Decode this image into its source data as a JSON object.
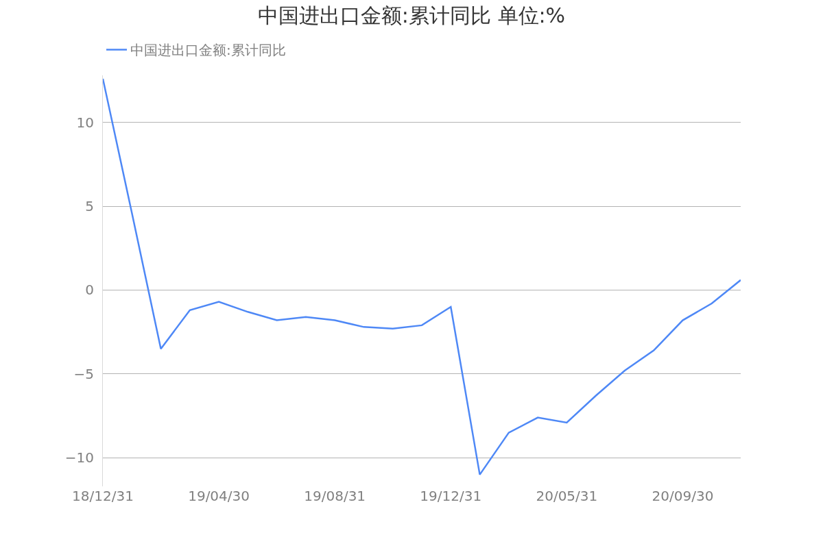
{
  "chart_data": {
    "type": "line",
    "title": "中国进出口金额:累计同比 单位:%",
    "categories": [
      "18/12/31",
      null,
      null,
      null,
      "19/04/30",
      null,
      null,
      null,
      "19/08/31",
      null,
      null,
      null,
      "19/12/31",
      null,
      null,
      null,
      "20/05/31",
      null,
      null,
      null,
      "20/09/30",
      null,
      null
    ],
    "series": [
      {
        "name": "中国进出口金额:累计同比",
        "color": "#4e88f6",
        "values": [
          12.6,
          4.6,
          -3.5,
          -1.2,
          -0.7,
          -1.3,
          -1.8,
          -1.6,
          -1.8,
          -2.2,
          -2.3,
          -2.1,
          -1.0,
          -11.0,
          -8.5,
          -7.6,
          -7.9,
          -6.3,
          -4.8,
          -3.6,
          -1.8,
          -0.8,
          0.6
        ]
      }
    ],
    "ylim": [
      -11.7,
      12.8
    ],
    "yticks": [
      -10,
      -5,
      0,
      5,
      10
    ],
    "grid": "y",
    "legend": "top left",
    "marker": "none",
    "line_style": "solid"
  }
}
